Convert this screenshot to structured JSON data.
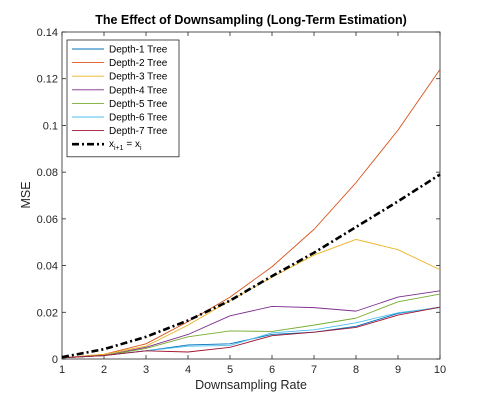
{
  "chart_data": {
    "type": "line",
    "title": "The Effect of Downsampling (Long-Term Estimation)",
    "xlabel": "Downsampling Rate",
    "ylabel": "MSE",
    "xlim": [
      1,
      10
    ],
    "ylim": [
      0,
      0.14
    ],
    "xticks": [
      "1",
      "2",
      "3",
      "4",
      "5",
      "6",
      "7",
      "8",
      "9",
      "10"
    ],
    "yticks": [
      "0",
      "0.02",
      "0.04",
      "0.06",
      "0.08",
      "0.1",
      "0.12",
      "0.14"
    ],
    "grid": false,
    "legend_position": "top-left",
    "x": [
      1,
      2,
      3,
      4,
      5,
      6,
      7,
      8,
      9,
      10
    ],
    "series": [
      {
        "name": "Depth-1 Tree",
        "color": "#0072BD",
        "style": "solid",
        "values": [
          0.0005,
          0.0015,
          0.0035,
          0.006,
          0.0065,
          0.0105,
          0.0115,
          0.014,
          0.0195,
          0.0222
        ]
      },
      {
        "name": "Depth-2 Tree",
        "color": "#D95319",
        "style": "solid",
        "values": [
          0.0005,
          0.002,
          0.0065,
          0.016,
          0.0265,
          0.0395,
          0.0555,
          0.0755,
          0.098,
          0.124
        ]
      },
      {
        "name": "Depth-3 Tree",
        "color": "#EDB120",
        "style": "solid",
        "values": [
          0.0005,
          0.002,
          0.0055,
          0.0145,
          0.025,
          0.035,
          0.0445,
          0.0512,
          0.0468,
          0.0382
        ]
      },
      {
        "name": "Depth-4 Tree",
        "color": "#7E2F8E",
        "style": "solid",
        "values": [
          0.0005,
          0.0015,
          0.005,
          0.0105,
          0.0185,
          0.0225,
          0.022,
          0.0205,
          0.0265,
          0.0292
        ]
      },
      {
        "name": "Depth-5 Tree",
        "color": "#77AC30",
        "style": "solid",
        "values": [
          0.0005,
          0.0015,
          0.0045,
          0.0095,
          0.012,
          0.0118,
          0.0145,
          0.0175,
          0.0245,
          0.0278
        ]
      },
      {
        "name": "Depth-6 Tree",
        "color": "#4DBEEE",
        "style": "solid",
        "values": [
          0.0005,
          0.0015,
          0.0035,
          0.0055,
          0.0058,
          0.0112,
          0.0125,
          0.0155,
          0.0198,
          0.022
        ]
      },
      {
        "name": "Depth-7 Tree",
        "color": "#A2142F",
        "style": "solid",
        "values": [
          0.0005,
          0.0015,
          0.0035,
          0.003,
          0.005,
          0.01,
          0.0115,
          0.0135,
          0.0188,
          0.0222
        ]
      },
      {
        "name": "x_{i+1} = x_i",
        "color": "#000000",
        "style": "dashdot",
        "values": [
          0.0008,
          0.0042,
          0.0095,
          0.0165,
          0.025,
          0.0355,
          0.0455,
          0.0565,
          0.0675,
          0.079
        ]
      }
    ],
    "legend_custom": {
      "base": "x",
      "sub1": "i+1",
      "eq": " = x",
      "sub2": "i"
    }
  }
}
